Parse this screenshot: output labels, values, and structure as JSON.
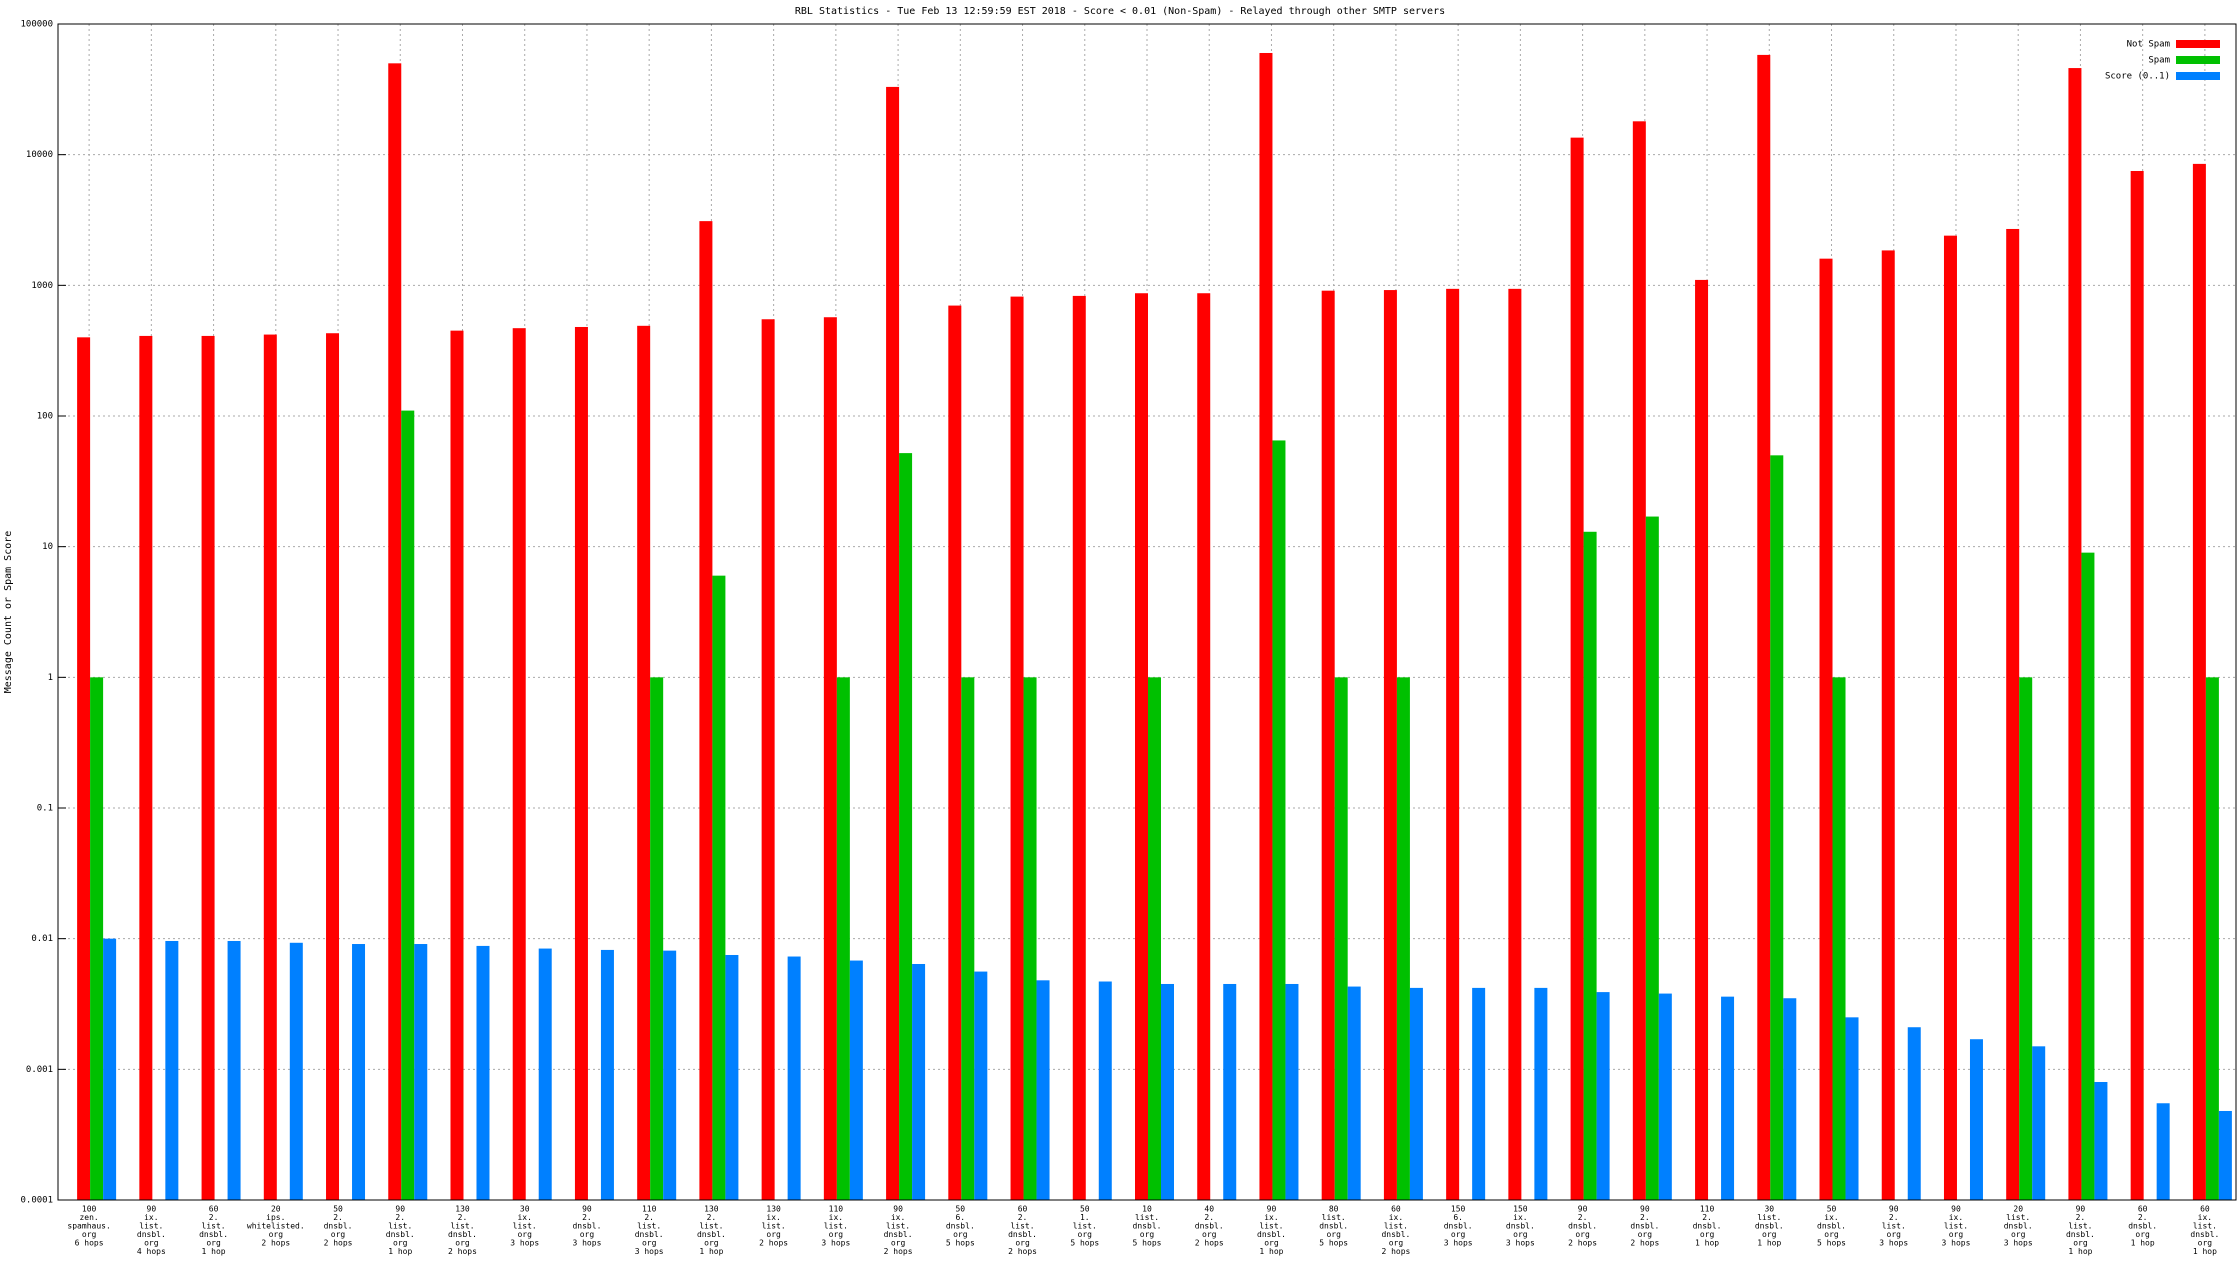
{
  "chart_data": {
    "type": "bar",
    "title": "RBL Statistics - Tue Feb 13 12:59:59 EST 2018 - Score < 0.01 (Non-Spam) - Relayed through other SMTP servers",
    "y_label": "Message Count or Spam Score",
    "log_scale": true,
    "grid": true,
    "legend_position": "top-right",
    "ylim": [
      0.0001,
      100000
    ],
    "yticks": [
      0.0001,
      0.001,
      0.01,
      0.1,
      1,
      10,
      100,
      1000,
      10000,
      100000
    ],
    "categories": [
      [
        "100",
        "zen.",
        "spamhaus.",
        "org",
        "6 hops"
      ],
      [
        "90",
        "ix.",
        "list.",
        "dnsbl.",
        "org",
        "4 hops"
      ],
      [
        "60",
        "2.",
        "list.",
        "dnsbl.",
        "org",
        "1 hop"
      ],
      [
        "20",
        "ips.",
        "whitelisted.",
        "org",
        "2 hops"
      ],
      [
        "50",
        "2.",
        "dnsbl.",
        "org",
        "2 hops"
      ],
      [
        "90",
        "2.",
        "list.",
        "dnsbl.",
        "org",
        "1 hop"
      ],
      [
        "130",
        "2.",
        "list.",
        "dnsbl.",
        "org",
        "2 hops"
      ],
      [
        "30",
        "ix.",
        "list.",
        "org",
        "3 hops"
      ],
      [
        "90",
        "2.",
        "dnsbl.",
        "org",
        "3 hops"
      ],
      [
        "110",
        "2.",
        "list.",
        "dnsbl.",
        "org",
        "3 hops"
      ],
      [
        "130",
        "2.",
        "list.",
        "dnsbl.",
        "org",
        "1 hop"
      ],
      [
        "130",
        "ix.",
        "list.",
        "org",
        "2 hops"
      ],
      [
        "110",
        "ix.",
        "list.",
        "org",
        "3 hops"
      ],
      [
        "90",
        "ix.",
        "list.",
        "dnsbl.",
        "org",
        "2 hops"
      ],
      [
        "50",
        "6.",
        "dnsbl.",
        "org",
        "5 hops"
      ],
      [
        "60",
        "2.",
        "list.",
        "dnsbl.",
        "org",
        "2 hops"
      ],
      [
        "50",
        "1.",
        "list.",
        "org",
        "5 hops"
      ],
      [
        "10",
        "list.",
        "dnsbl.",
        "org",
        "5 hops"
      ],
      [
        "40",
        "2.",
        "dnsbl.",
        "org",
        "2 hops"
      ],
      [
        "90",
        "ix.",
        "list.",
        "dnsbl.",
        "org",
        "1 hop"
      ],
      [
        "80",
        "list.",
        "dnsbl.",
        "org",
        "5 hops"
      ],
      [
        "60",
        "ix.",
        "list.",
        "dnsbl.",
        "org",
        "2 hops"
      ],
      [
        "150",
        "6.",
        "dnsbl.",
        "org",
        "3 hops"
      ],
      [
        "150",
        "ix.",
        "dnsbl.",
        "org",
        "3 hops"
      ],
      [
        "90",
        "2.",
        "dnsbl.",
        "org",
        "2 hops"
      ],
      [
        "90",
        "2.",
        "dnsbl.",
        "org",
        "2 hops"
      ],
      [
        "110",
        "2.",
        "dnsbl.",
        "org",
        "1 hop"
      ],
      [
        "30",
        "list.",
        "dnsbl.",
        "org",
        "1 hop"
      ],
      [
        "50",
        "ix.",
        "dnsbl.",
        "org",
        "5 hops"
      ],
      [
        "90",
        "2.",
        "list.",
        "org",
        "3 hops"
      ],
      [
        "90",
        "ix.",
        "list.",
        "org",
        "3 hops"
      ],
      [
        "20",
        "list.",
        "dnsbl.",
        "org",
        "3 hops"
      ],
      [
        "90",
        "2.",
        "list.",
        "dnsbl.",
        "org",
        "1 hop"
      ],
      [
        "60",
        "2.",
        "dnsbl.",
        "org",
        "1 hop"
      ],
      [
        "60",
        "ix.",
        "list.",
        "dnsbl.",
        "org",
        "1 hop"
      ]
    ],
    "series": [
      {
        "name": "Not Spam",
        "color": "#ff0000",
        "values": [
          400,
          410,
          410,
          420,
          430,
          50000,
          450,
          470,
          480,
          490,
          3100,
          550,
          570,
          33000,
          700,
          820,
          830,
          870,
          870,
          60000,
          910,
          920,
          940,
          940,
          13500,
          18000,
          1100,
          58000,
          1600,
          1850,
          2400,
          2700,
          46000,
          7500,
          8500
        ]
      },
      {
        "name": "Spam",
        "color": "#00c000",
        "values": [
          1,
          null,
          null,
          null,
          null,
          110,
          null,
          null,
          null,
          1,
          6,
          null,
          1,
          52,
          1,
          1,
          null,
          1,
          null,
          65,
          1,
          1,
          null,
          null,
          13,
          17,
          null,
          50,
          1,
          null,
          null,
          1,
          9,
          null,
          1
        ]
      },
      {
        "name": "Score (0..1)",
        "color": "#0080ff",
        "values": [
          0.01,
          0.0096,
          0.0096,
          0.0093,
          0.0091,
          0.0091,
          0.0088,
          0.0084,
          0.0082,
          0.0081,
          0.0075,
          0.0073,
          0.0068,
          0.0064,
          0.0056,
          0.0048,
          0.0047,
          0.0045,
          0.0045,
          0.0045,
          0.0043,
          0.0042,
          0.0042,
          0.0042,
          0.0039,
          0.0038,
          0.0036,
          0.0035,
          0.0025,
          0.0021,
          0.0017,
          0.0015,
          0.0008,
          0.00055,
          0.00048
        ]
      }
    ]
  }
}
